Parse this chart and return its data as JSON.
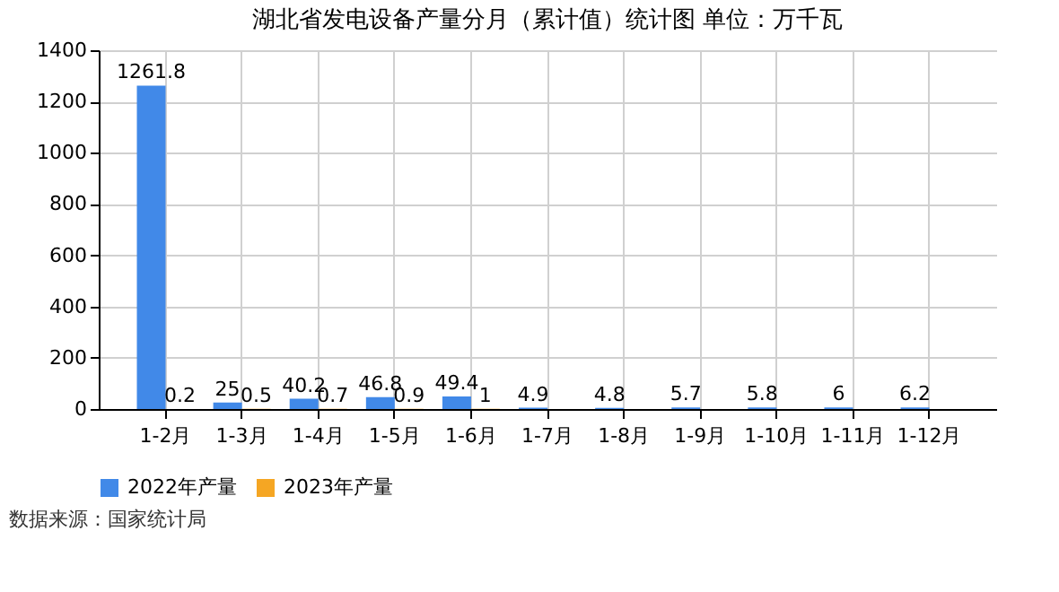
{
  "chart_data": {
    "type": "bar",
    "title": "湖北省发电设备产量分月（累计值）统计图 单位：万千瓦",
    "categories": [
      "1-2月",
      "1-3月",
      "1-4月",
      "1-5月",
      "1-6月",
      "1-7月",
      "1-8月",
      "1-9月",
      "1-10月",
      "1-11月",
      "1-12月"
    ],
    "series": [
      {
        "name": "2022年产量",
        "color": "#4189e8",
        "values": [
          1261.8,
          25,
          40.2,
          46.8,
          49.4,
          4.9,
          4.8,
          5.7,
          5.8,
          6,
          6.2
        ]
      },
      {
        "name": "2023年产量",
        "color": "#f5a623",
        "values": [
          0.2,
          0.5,
          0.7,
          0.9,
          1,
          null,
          null,
          null,
          null,
          null,
          null
        ]
      }
    ],
    "ylim": [
      0,
      1400
    ],
    "yticks": [
      0,
      200,
      400,
      600,
      800,
      1000,
      1200,
      1400
    ],
    "grid": true,
    "legend": "bottom",
    "data_labels": true,
    "annotations": [
      "数据来源：国家统计局"
    ]
  }
}
